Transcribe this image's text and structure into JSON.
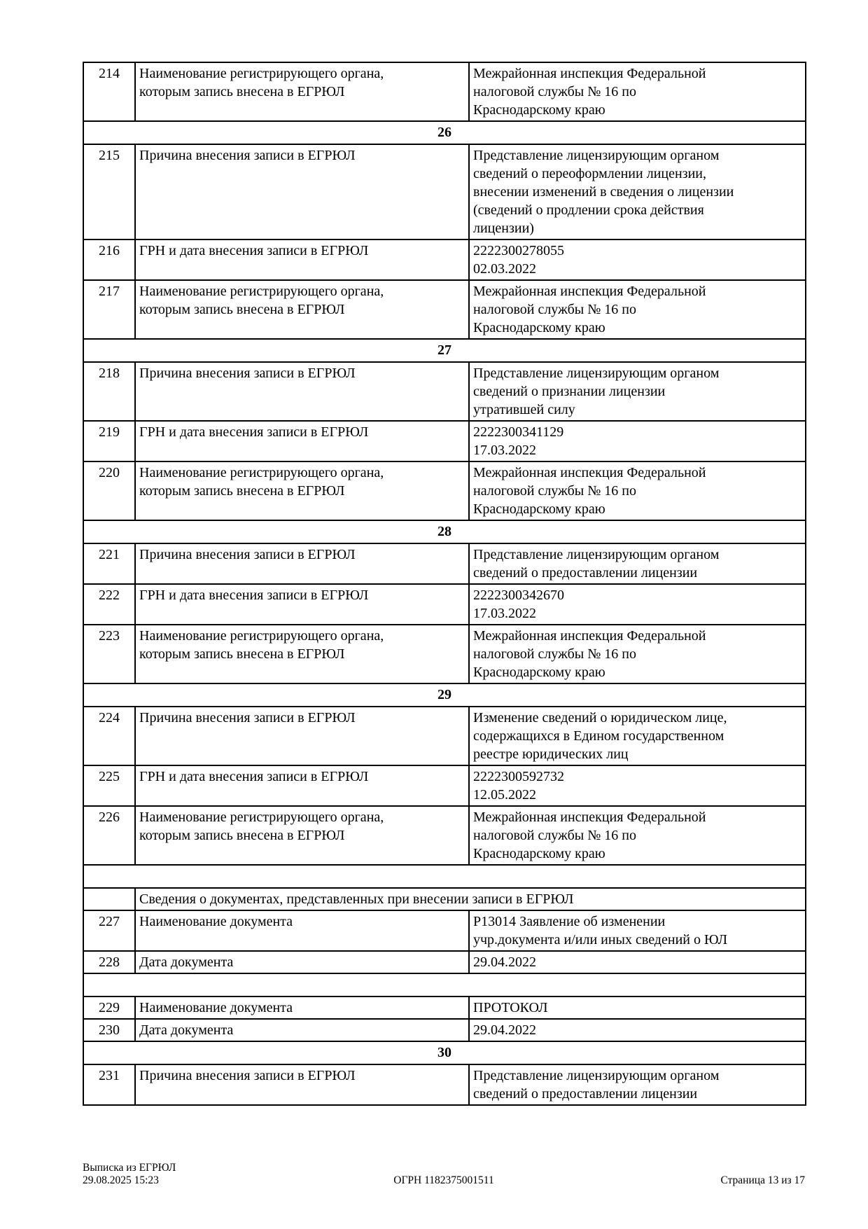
{
  "table": {
    "rows": [
      {
        "type": "data",
        "num": "214",
        "label": "Наименование регистрирующего органа,\nкоторым запись внесена в ЕГРЮЛ",
        "value": "Межрайонная инспекция Федеральной\nналоговой службы № 16 по\nКраснодарскому краю"
      },
      {
        "type": "section",
        "title": "26"
      },
      {
        "type": "data",
        "num": "215",
        "label": "Причина внесения записи в ЕГРЮЛ",
        "value": "Представление лицензирующим органом\nсведений о переоформлении лицензии,\nвнесении изменений в сведения о лицензии\n(сведений о продлении срока действия\nлицензии)"
      },
      {
        "type": "data",
        "num": "216",
        "label": "ГРН и дата внесения записи в ЕГРЮЛ",
        "value": "2222300278055\n02.03.2022"
      },
      {
        "type": "data",
        "num": "217",
        "label": "Наименование регистрирующего органа,\nкоторым запись внесена в ЕГРЮЛ",
        "value": "Межрайонная инспекция Федеральной\nналоговой службы № 16 по\nКраснодарскому краю"
      },
      {
        "type": "section",
        "title": "27"
      },
      {
        "type": "data",
        "num": "218",
        "label": "Причина внесения записи в ЕГРЮЛ",
        "value": "Представление лицензирующим органом\nсведений о признании лицензии\nутратившей силу"
      },
      {
        "type": "data",
        "num": "219",
        "label": "ГРН и дата внесения записи в ЕГРЮЛ",
        "value": "2222300341129\n17.03.2022"
      },
      {
        "type": "data",
        "num": "220",
        "label": "Наименование регистрирующего органа,\nкоторым запись внесена в ЕГРЮЛ",
        "value": "Межрайонная инспекция Федеральной\nналоговой службы № 16 по\nКраснодарскому краю"
      },
      {
        "type": "section",
        "title": "28"
      },
      {
        "type": "data",
        "num": "221",
        "label": "Причина внесения записи в ЕГРЮЛ",
        "value": "Представление лицензирующим органом\nсведений о предоставлении лицензии"
      },
      {
        "type": "data",
        "num": "222",
        "label": "ГРН и дата внесения записи в ЕГРЮЛ",
        "value": "2222300342670\n17.03.2022"
      },
      {
        "type": "data",
        "num": "223",
        "label": "Наименование регистрирующего органа,\nкоторым запись внесена в ЕГРЮЛ",
        "value": "Межрайонная инспекция Федеральной\nналоговой службы № 16 по\nКраснодарскому краю"
      },
      {
        "type": "section",
        "title": "29"
      },
      {
        "type": "data",
        "num": "224",
        "label": "Причина внесения записи в ЕГРЮЛ",
        "value": "Изменение сведений о юридическом лице,\nсодержащихся в Едином государственном\nреестре юридических лиц"
      },
      {
        "type": "data",
        "num": "225",
        "label": "ГРН и дата внесения записи в ЕГРЮЛ",
        "value": "2222300592732\n12.05.2022"
      },
      {
        "type": "data",
        "num": "226",
        "label": "Наименование регистрирующего органа,\nкоторым запись внесена в ЕГРЮЛ",
        "value": "Межрайонная инспекция Федеральной\nналоговой службы № 16 по\nКраснодарскому краю"
      },
      {
        "type": "empty"
      },
      {
        "type": "span",
        "text": "Сведения о документах, представленных при внесении записи в ЕГРЮЛ"
      },
      {
        "type": "data",
        "num": "227",
        "label": "Наименование документа",
        "value": "Р13014 Заявление об изменении\nучр.документа и/или иных сведений о ЮЛ"
      },
      {
        "type": "data",
        "num": "228",
        "label": "Дата документа",
        "value": "29.04.2022"
      },
      {
        "type": "empty"
      },
      {
        "type": "data",
        "num": "229",
        "label": "Наименование документа",
        "value": "ПРОТОКОЛ"
      },
      {
        "type": "data",
        "num": "230",
        "label": "Дата документа",
        "value": "29.04.2022"
      },
      {
        "type": "section",
        "title": "30"
      },
      {
        "type": "data",
        "num": "231",
        "label": "Причина внесения записи в ЕГРЮЛ",
        "value": "Представление лицензирующим органом\nсведений о предоставлении лицензии"
      }
    ]
  },
  "footer": {
    "doc_title": "Выписка из ЕГРЮЛ",
    "timestamp": "29.08.2025 15:23",
    "ogrn": "ОГРН 1182375001511",
    "page_info": "Страница 13 из 17"
  }
}
